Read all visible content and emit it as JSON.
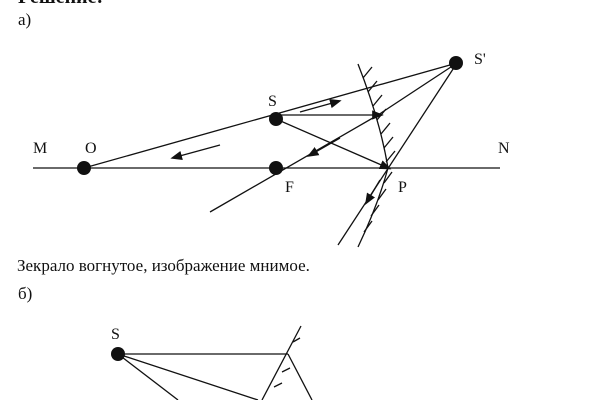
{
  "heading": "Решение:",
  "part_a": {
    "label": "а)",
    "points": {
      "M": "M",
      "O": "O",
      "S": "S",
      "S_image": "S'",
      "F": "F",
      "P": "P",
      "N": "N"
    }
  },
  "conclusion": "Зекрало вогнутое, изображение мнимое.",
  "part_b": {
    "label": "б)",
    "points": {
      "S": "S"
    }
  }
}
